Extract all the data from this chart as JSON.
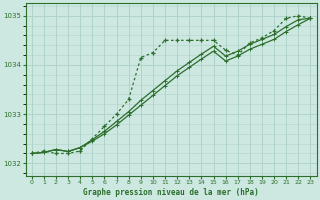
{
  "title": "Graphe pression niveau de la mer (hPa)",
  "background_color": "#cce8e0",
  "grid_color": "#b0d4cc",
  "line_color": "#2d6e2d",
  "xlim": [
    -0.5,
    23.5
  ],
  "ylim": [
    1031.75,
    1035.25
  ],
  "xticks": [
    0,
    1,
    2,
    3,
    4,
    5,
    6,
    7,
    8,
    9,
    10,
    11,
    12,
    13,
    14,
    15,
    16,
    17,
    18,
    19,
    20,
    21,
    22,
    23
  ],
  "yticks": [
    1032,
    1033,
    1034,
    1035
  ],
  "series1_x": [
    0,
    1,
    2,
    3,
    4,
    5,
    6,
    7,
    8,
    9,
    10,
    11,
    12,
    13,
    14,
    15,
    16,
    17,
    18,
    19,
    20,
    21,
    22,
    23
  ],
  "series1_y": [
    1032.2,
    1032.25,
    1032.2,
    1032.2,
    1032.25,
    1032.5,
    1032.75,
    1033.0,
    1033.3,
    1034.15,
    1034.25,
    1034.5,
    1034.5,
    1034.5,
    1034.5,
    1034.5,
    1034.3,
    1034.2,
    1034.45,
    1034.55,
    1034.7,
    1034.95,
    1035.0,
    1034.95
  ],
  "series2_x": [
    0,
    1,
    2,
    3,
    4,
    5,
    6,
    7,
    8,
    9,
    10,
    11,
    12,
    13,
    14,
    15,
    16,
    17,
    18,
    19,
    20,
    21,
    22,
    23
  ],
  "series2_y": [
    1032.2,
    1032.22,
    1032.28,
    1032.24,
    1032.32,
    1032.48,
    1032.65,
    1032.85,
    1033.05,
    1033.28,
    1033.48,
    1033.68,
    1033.88,
    1034.05,
    1034.22,
    1034.38,
    1034.18,
    1034.28,
    1034.42,
    1034.52,
    1034.62,
    1034.78,
    1034.92,
    1034.95
  ],
  "series3_x": [
    0,
    1,
    2,
    3,
    4,
    5,
    6,
    7,
    8,
    9,
    10,
    11,
    12,
    13,
    14,
    15,
    16,
    17,
    18,
    19,
    20,
    21,
    22,
    23
  ],
  "series3_y": [
    1032.2,
    1032.22,
    1032.28,
    1032.24,
    1032.32,
    1032.45,
    1032.6,
    1032.78,
    1032.98,
    1033.18,
    1033.38,
    1033.58,
    1033.78,
    1033.95,
    1034.12,
    1034.28,
    1034.08,
    1034.18,
    1034.32,
    1034.42,
    1034.52,
    1034.68,
    1034.82,
    1034.95
  ]
}
